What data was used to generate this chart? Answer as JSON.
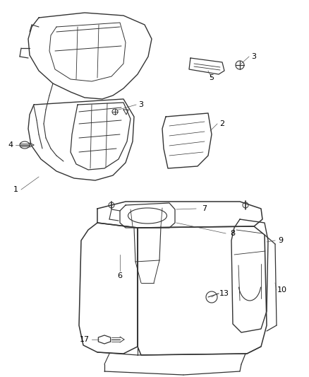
{
  "bg_color": "#ffffff",
  "line_color": "#333333",
  "label_color": "#000000",
  "fig_width": 4.39,
  "fig_height": 5.33,
  "dpi": 100
}
